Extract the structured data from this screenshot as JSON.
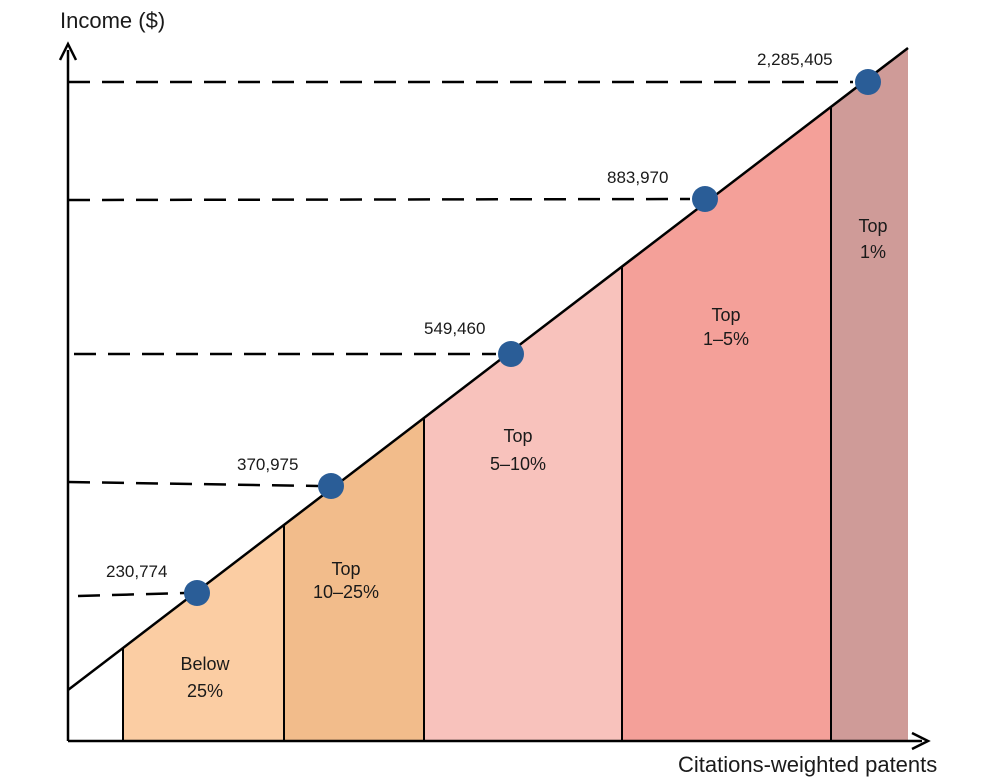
{
  "chart_data": {
    "type": "area",
    "ylabel": "Income ($)",
    "xlabel": "Citations-weighted patents",
    "bands": [
      {
        "label_line1": "Below",
        "label_line2": "25%",
        "color": "#fbcda3"
      },
      {
        "label_line1": "Top",
        "label_line2": "10–25%",
        "color": "#f2bc8b"
      },
      {
        "label_line1": "Top",
        "label_line2": "5–10%",
        "color": "#f8c2bc"
      },
      {
        "label_line1": "Top",
        "label_line2": "1–5%",
        "color": "#f4a099"
      },
      {
        "label_line1": "Top",
        "label_line2": "1%",
        "color": "#cf9b98"
      }
    ],
    "points": [
      {
        "label": "230,774",
        "value": 230774
      },
      {
        "label": "370,975",
        "value": 370975
      },
      {
        "label": "549,460",
        "value": 549460
      },
      {
        "label": "883,970",
        "value": 883970
      },
      {
        "label": "2,285,405",
        "value": 2285405
      }
    ],
    "marker_color": "#2a5d97",
    "grid": false
  }
}
